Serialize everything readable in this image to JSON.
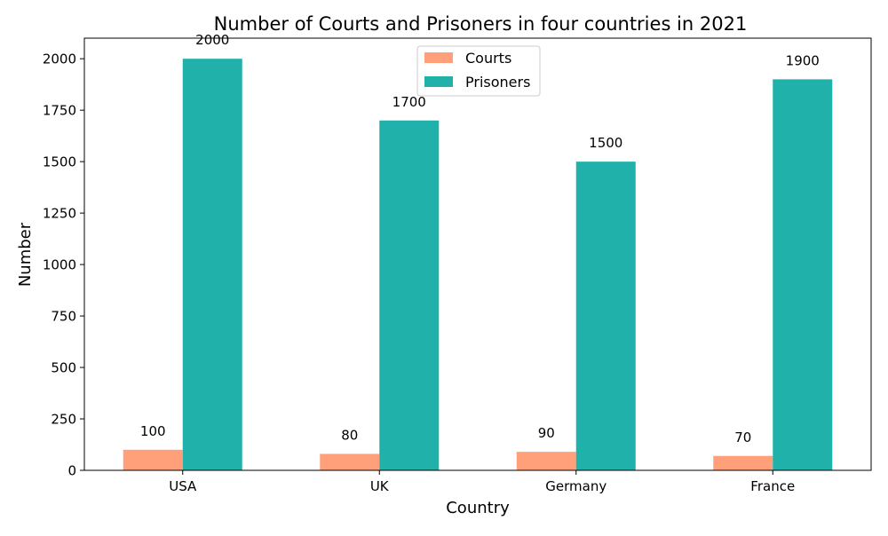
{
  "chart_data": {
    "type": "bar",
    "title": "Number of Courts and Prisoners in four countries in 2021",
    "xlabel": "Country",
    "ylabel": "Number",
    "categories": [
      "USA",
      "UK",
      "Germany",
      "France"
    ],
    "ylim": [
      0,
      2100
    ],
    "yticks": [
      0,
      250,
      500,
      750,
      1000,
      1250,
      1500,
      1750,
      2000
    ],
    "series": [
      {
        "name": "Courts",
        "color": "#ffa07a",
        "values": [
          100,
          80,
          90,
          70
        ]
      },
      {
        "name": "Prisoners",
        "color": "#20b2aa",
        "values": [
          2000,
          1700,
          1500,
          1900
        ]
      }
    ],
    "grid": false,
    "legend": "top-center",
    "data_labels": true
  }
}
